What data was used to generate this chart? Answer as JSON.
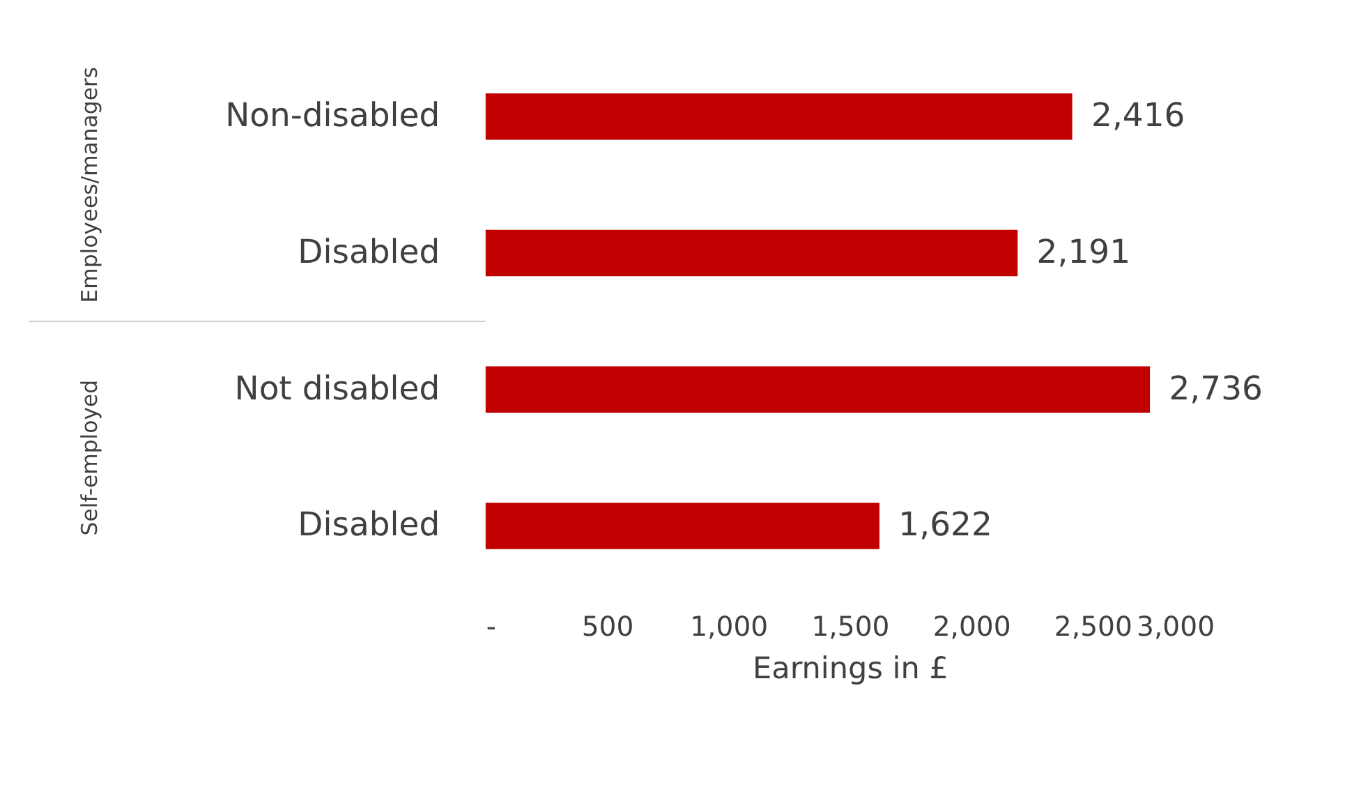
{
  "chart_data": {
    "type": "bar",
    "orientation": "horizontal",
    "xlabel": "Earnings in £",
    "categories": [
      "Non-disabled",
      "Disabled",
      "Not disabled",
      "Disabled"
    ],
    "values": [
      2416,
      2191,
      2736,
      1622
    ],
    "color": "#c00000",
    "value_labels": [
      "2,416",
      "2,191",
      "2,736",
      "1,622"
    ],
    "xlim": [
      0,
      3000
    ],
    "xticks": [
      {
        "value": 0,
        "label": "-"
      },
      {
        "value": 500,
        "label": "500"
      },
      {
        "value": 1000,
        "label": "1,000"
      },
      {
        "value": 1500,
        "label": "1,500"
      },
      {
        "value": 2000,
        "label": "2,000"
      },
      {
        "value": 2500,
        "label": "2,500"
      },
      {
        "value": 3000,
        "label": "3,000"
      }
    ],
    "annotations": [
      "Employees/managers",
      "Self-employed"
    ],
    "grid": false
  }
}
